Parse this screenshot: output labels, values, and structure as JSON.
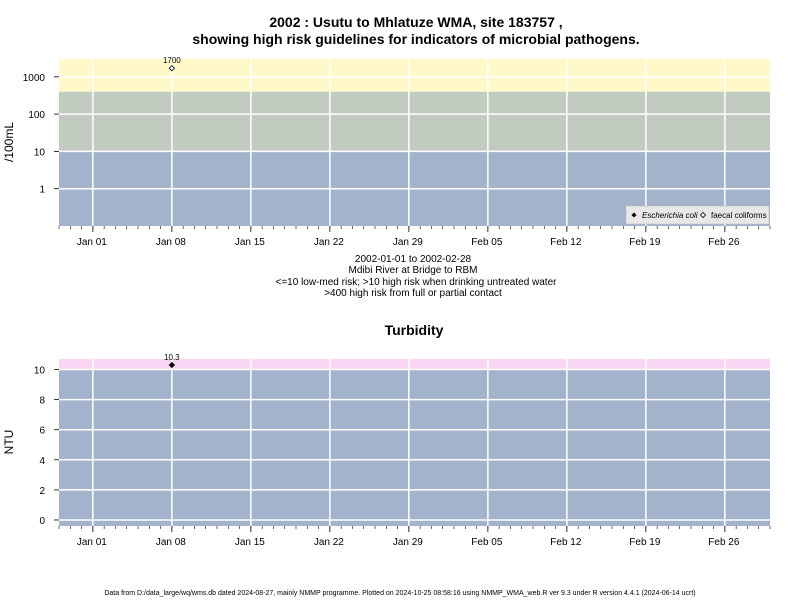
{
  "colors": {
    "panel_blue": "#a3b3cb",
    "panel_green": "#c2cbc0",
    "panel_yellow": "#fff9c9",
    "panel_pink": "#f8d6f4",
    "grid": "#ffffff",
    "marker_ecoli": "#000000",
    "marker_faecal": "#ffffff"
  },
  "chart_data": [
    {
      "type": "scatter",
      "title_line1": "2002 : Usutu to Mhlatuze WMA, site 183757 ,",
      "title_line2": "showing high risk guidelines for indicators of microbial pathogens.",
      "ylabel": "/100mL",
      "y_scale": "log",
      "ylim": [
        0.1,
        3000
      ],
      "yticks": [
        1,
        10,
        100,
        1000
      ],
      "ytick_labels": [
        "1",
        "10",
        "100",
        "1000"
      ],
      "xlim": [
        "2001-12-29",
        "2002-03-02"
      ],
      "xticks": [
        "2002-01-01",
        "2002-01-08",
        "2002-01-15",
        "2002-01-22",
        "2002-01-29",
        "2002-02-05",
        "2002-02-12",
        "2002-02-19",
        "2002-02-26"
      ],
      "xtick_labels": [
        "Jan 01",
        "Jan 08",
        "Jan 15",
        "Jan 22",
        "Jan 29",
        "Feb 05",
        "Feb 12",
        "Feb 19",
        "Feb 26"
      ],
      "grid": true,
      "bands": [
        {
          "from": 0.1,
          "to": 10,
          "color": "#a3b3cb"
        },
        {
          "from": 10,
          "to": 400,
          "color": "#c2cbc0"
        },
        {
          "from": 400,
          "to": 3000,
          "color": "#fff9c9"
        }
      ],
      "series": [
        {
          "name": "Escherichia coli",
          "marker": "filled-diamond",
          "points": []
        },
        {
          "name": "faecal coliforms",
          "marker": "open-diamond",
          "points": [
            {
              "x": "2002-01-08",
              "y": 1700,
              "label": "1700"
            }
          ]
        }
      ],
      "legend_position": "bottom-right",
      "caption": [
        "2002-01-01 to 2002-02-28",
        "Mdibi River at Bridge to RBM",
        "<=10 low-med risk; >10 high risk when drinking untreated water",
        ">400 high risk from full or partial contact"
      ]
    },
    {
      "type": "scatter",
      "title": "Turbidity",
      "ylabel": "NTU",
      "y_scale": "linear",
      "ylim": [
        -0.4,
        10.7
      ],
      "yticks": [
        0,
        2,
        4,
        6,
        8,
        10
      ],
      "ytick_labels": [
        "0",
        "2",
        "4",
        "6",
        "8",
        "10"
      ],
      "xlim": [
        "2001-12-29",
        "2002-03-02"
      ],
      "xticks": [
        "2002-01-01",
        "2002-01-08",
        "2002-01-15",
        "2002-01-22",
        "2002-01-29",
        "2002-02-05",
        "2002-02-12",
        "2002-02-19",
        "2002-02-26"
      ],
      "xtick_labels": [
        "Jan 01",
        "Jan 08",
        "Jan 15",
        "Jan 22",
        "Jan 29",
        "Feb 05",
        "Feb 12",
        "Feb 19",
        "Feb 26"
      ],
      "grid": true,
      "bands": [
        {
          "from": -0.4,
          "to": 10,
          "color": "#a3b3cb"
        },
        {
          "from": 10,
          "to": 10.7,
          "color": "#f8d6f4"
        }
      ],
      "series": [
        {
          "name": "",
          "marker": "filled-diamond",
          "points": [
            {
              "x": "2002-01-08",
              "y": 10.3,
              "label": "10.3"
            }
          ]
        }
      ]
    }
  ],
  "footer": "Data from D:/data_large/wq/wms.db dated 2024-08-27, mainly NMMP programme. Plotted on 2024-10-25 08:58:16 using NMMP_WMA_web.R ver 9.3 under R version 4.4.1 (2024-06-14 ucrt)"
}
